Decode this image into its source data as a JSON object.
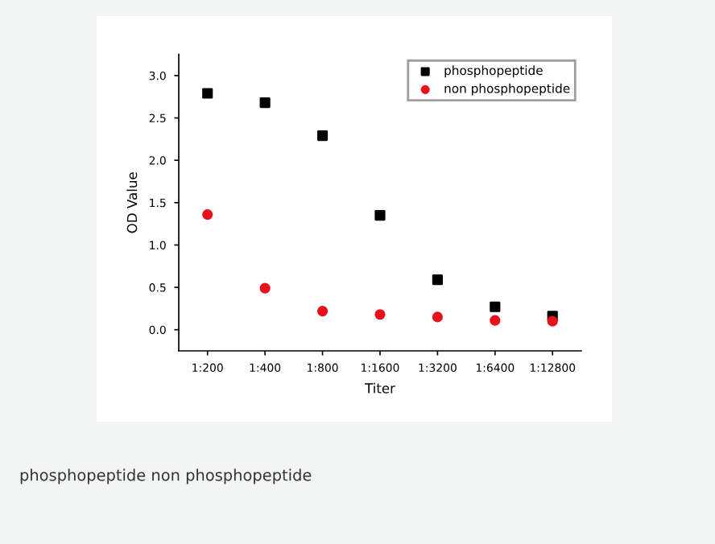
{
  "chart_data": {
    "type": "scatter",
    "xlabel": "Titer",
    "ylabel": "OD Value",
    "categories": [
      "1:200",
      "1:400",
      "1:800",
      "1:1600",
      "1:3200",
      "1:6400",
      "1:12800"
    ],
    "series": [
      {
        "name": "phosphopeptide",
        "color": "#000000",
        "marker": "square",
        "values": [
          2.79,
          2.68,
          2.29,
          1.35,
          0.59,
          0.27,
          0.16
        ]
      },
      {
        "name": "non phosphopeptide",
        "color": "#e8101a",
        "marker": "circle",
        "values": [
          1.36,
          0.49,
          0.22,
          0.18,
          0.15,
          0.11,
          0.1
        ]
      }
    ],
    "ylim": [
      -0.25,
      3.25
    ],
    "yticks": [
      {
        "value": 0,
        "label": "0.0"
      },
      0.5,
      {
        "value": 1,
        "label": "1.0"
      },
      1.5,
      {
        "value": 2,
        "label": "2.0"
      },
      2.5,
      {
        "value": 3,
        "label": "3.0"
      }
    ],
    "grid": false,
    "legend": "top right",
    "annotations": [
      "phosphopeptide non phosphopeptide"
    ]
  }
}
